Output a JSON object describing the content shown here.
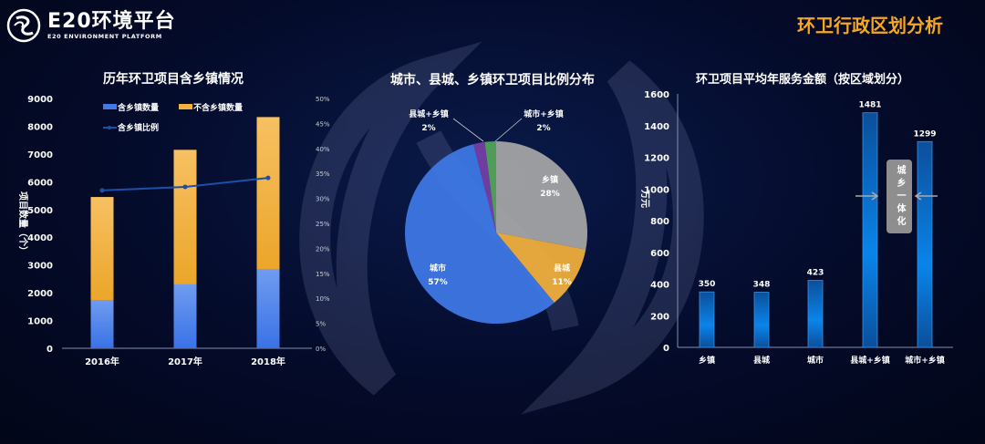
{
  "header": {
    "logo_main": "E20环境平台",
    "logo_sub": "E20 ENVIRONMENT PLATFORM",
    "title": "环卫行政区划分析"
  },
  "colors": {
    "blue": "#3f7ae8",
    "orange": "#f5b23c",
    "line": "#1e4fa8",
    "pie_gray": "#a8a8a8",
    "pie_yellow": "#f5b23c",
    "pie_blue": "#3f7ae8",
    "pie_purple": "#7b3fa8",
    "pie_green": "#55a85a",
    "bar_blue": "#0a7ee0",
    "title_orange": "#f5a623"
  },
  "chart_data": [
    {
      "type": "bar",
      "stacked": true,
      "title": "历年环卫项目含乡镇情况",
      "categories": [
        "2016年",
        "2017年",
        "2018年"
      ],
      "series": [
        {
          "name": "含乡镇数量",
          "values": [
            1720,
            2300,
            2830
          ]
        },
        {
          "name": "不含乡镇数量",
          "values": [
            3730,
            4850,
            5500
          ]
        },
        {
          "name": "含乡镇比例",
          "type": "line",
          "axis": "right",
          "values": [
            31.6,
            32.3,
            34.1
          ]
        }
      ],
      "ylabel": "项目数量（个）",
      "ylim": [
        0,
        9000
      ],
      "yticks": [
        0,
        1000,
        2000,
        3000,
        4000,
        5000,
        6000,
        7000,
        8000,
        9000
      ],
      "y2lim": [
        0,
        50
      ],
      "y2ticks": [
        "0%",
        "5%",
        "10%",
        "15%",
        "20%",
        "25%",
        "30%",
        "35%",
        "40%",
        "45%",
        "50%"
      ],
      "legend": "top"
    },
    {
      "type": "pie",
      "title": "城市、县城、乡镇环卫项目比例分布",
      "slices": [
        {
          "label": "乡镇",
          "value": 28,
          "text": "28%"
        },
        {
          "label": "县城",
          "value": 11,
          "text": "11%"
        },
        {
          "label": "城市",
          "value": 57,
          "text": "57%"
        },
        {
          "label": "县城+乡镇",
          "value": 2,
          "text": "2%"
        },
        {
          "label": "城市+乡镇",
          "value": 2,
          "text": "2%"
        }
      ]
    },
    {
      "type": "bar",
      "title": "环卫项目平均年服务金额（按区域划分）",
      "categories": [
        "乡镇",
        "县城",
        "城市",
        "县城+乡镇",
        "城市+乡镇"
      ],
      "values": [
        350,
        348,
        423,
        1481,
        1299
      ],
      "ylabel": "万元",
      "ylim": [
        0,
        1600
      ],
      "yticks": [
        0,
        200,
        400,
        600,
        800,
        1000,
        1200,
        1400,
        1600
      ],
      "annotation": "城乡一体化"
    }
  ]
}
